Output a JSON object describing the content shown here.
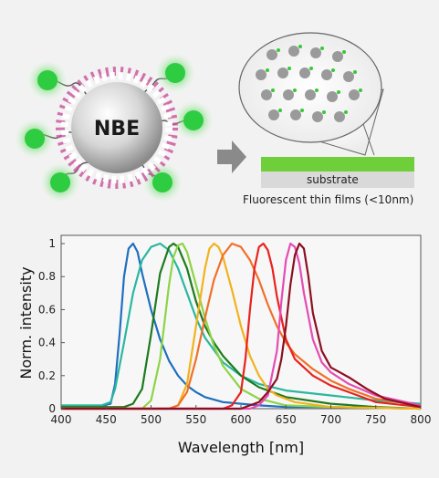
{
  "illustration": {
    "particle_label": "NBE",
    "substrate_label": "substrate",
    "film_caption": "Fluorescent thin films (<10nm)"
  },
  "chart_data": {
    "type": "line",
    "xlabel": "Wavelength [nm]",
    "ylabel": "Norm. intensity",
    "xlim": [
      400,
      800
    ],
    "ylim": [
      0,
      1.05
    ],
    "xticks": [
      400,
      450,
      500,
      550,
      600,
      650,
      700,
      750,
      800
    ],
    "yticks": [
      0,
      0.2,
      0.4,
      0.6,
      0.8,
      1
    ],
    "ytick_labels": [
      "0",
      "0.2",
      "0.4",
      "0.6",
      "0.8",
      "1"
    ],
    "grid": false,
    "series": [
      {
        "color": "#1f6fbf",
        "x": [
          400,
          440,
          455,
          460,
          465,
          470,
          475,
          480,
          485,
          490,
          500,
          510,
          520,
          530,
          540,
          550,
          560,
          580,
          600,
          620,
          650,
          700,
          800
        ],
        "y": [
          0.01,
          0.01,
          0.03,
          0.15,
          0.45,
          0.8,
          0.97,
          1.0,
          0.95,
          0.82,
          0.6,
          0.42,
          0.29,
          0.2,
          0.14,
          0.1,
          0.07,
          0.04,
          0.03,
          0.02,
          0.01,
          0.01,
          0.0
        ]
      },
      {
        "color": "#2ab7a0",
        "x": [
          400,
          445,
          455,
          460,
          470,
          480,
          490,
          500,
          510,
          520,
          530,
          540,
          550,
          560,
          580,
          600,
          620,
          650,
          700,
          750,
          800
        ],
        "y": [
          0.02,
          0.02,
          0.04,
          0.12,
          0.4,
          0.7,
          0.9,
          0.98,
          1.0,
          0.96,
          0.85,
          0.7,
          0.55,
          0.43,
          0.28,
          0.2,
          0.15,
          0.11,
          0.08,
          0.05,
          0.03
        ]
      },
      {
        "color": "#1e7a1e",
        "x": [
          400,
          470,
          480,
          490,
          500,
          510,
          520,
          525,
          530,
          540,
          550,
          560,
          570,
          580,
          600,
          620,
          650,
          700,
          750,
          800
        ],
        "y": [
          0.01,
          0.01,
          0.03,
          0.12,
          0.45,
          0.82,
          0.98,
          1.0,
          0.98,
          0.85,
          0.65,
          0.5,
          0.4,
          0.32,
          0.2,
          0.13,
          0.07,
          0.03,
          0.01,
          0.0
        ]
      },
      {
        "color": "#8cd447",
        "x": [
          400,
          490,
          500,
          510,
          520,
          525,
          530,
          535,
          540,
          550,
          560,
          570,
          580,
          600,
          620,
          650,
          700,
          800
        ],
        "y": [
          0.0,
          0.0,
          0.05,
          0.3,
          0.75,
          0.92,
          0.99,
          1.0,
          0.95,
          0.75,
          0.55,
          0.38,
          0.26,
          0.12,
          0.06,
          0.02,
          0.01,
          0.0
        ]
      },
      {
        "color": "#f2b21e",
        "x": [
          400,
          520,
          530,
          540,
          550,
          560,
          565,
          570,
          575,
          580,
          590,
          600,
          610,
          620,
          630,
          640,
          660,
          700,
          800
        ],
        "y": [
          0.0,
          0.0,
          0.02,
          0.15,
          0.5,
          0.85,
          0.97,
          1.0,
          0.98,
          0.92,
          0.72,
          0.5,
          0.32,
          0.2,
          0.12,
          0.08,
          0.04,
          0.01,
          0.0
        ]
      },
      {
        "color": "#f07028",
        "x": [
          400,
          520,
          530,
          540,
          550,
          560,
          570,
          580,
          590,
          600,
          610,
          620,
          630,
          640,
          650,
          660,
          680,
          700,
          720,
          750,
          800
        ],
        "y": [
          0.0,
          0.0,
          0.02,
          0.1,
          0.3,
          0.55,
          0.78,
          0.93,
          1.0,
          0.98,
          0.9,
          0.78,
          0.63,
          0.5,
          0.4,
          0.33,
          0.24,
          0.17,
          0.12,
          0.06,
          0.02
        ]
      },
      {
        "color": "#e8231e",
        "x": [
          400,
          580,
          590,
          600,
          605,
          610,
          615,
          620,
          625,
          630,
          635,
          640,
          650,
          660,
          680,
          700,
          720,
          750,
          800
        ],
        "y": [
          0.0,
          0.0,
          0.02,
          0.1,
          0.3,
          0.6,
          0.85,
          0.98,
          1.0,
          0.96,
          0.85,
          0.68,
          0.42,
          0.3,
          0.2,
          0.14,
          0.1,
          0.04,
          0.01
        ]
      },
      {
        "color": "#e64cb4",
        "x": [
          400,
          610,
          620,
          630,
          640,
          645,
          650,
          655,
          660,
          665,
          670,
          680,
          690,
          700,
          720,
          750,
          800
        ],
        "y": [
          0.0,
          0.0,
          0.02,
          0.08,
          0.35,
          0.65,
          0.9,
          1.0,
          0.98,
          0.88,
          0.7,
          0.42,
          0.28,
          0.22,
          0.15,
          0.08,
          0.02
        ]
      },
      {
        "color": "#8b0f22",
        "x": [
          400,
          600,
          620,
          630,
          640,
          645,
          650,
          655,
          660,
          665,
          670,
          675,
          680,
          690,
          700,
          710,
          720,
          740,
          760,
          800
        ],
        "y": [
          0.0,
          0.0,
          0.04,
          0.1,
          0.18,
          0.3,
          0.5,
          0.75,
          0.93,
          1.0,
          0.97,
          0.8,
          0.58,
          0.35,
          0.25,
          0.22,
          0.19,
          0.12,
          0.06,
          0.01
        ]
      }
    ]
  }
}
